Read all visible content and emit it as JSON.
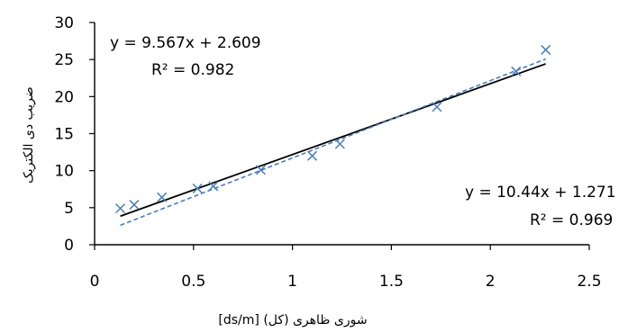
{
  "chart_data": {
    "type": "scatter",
    "xlabel": "شوری ظاهری (کل) [ds/m]",
    "ylabel": "ضریب دی الکتریک",
    "xlim": [
      0,
      2.5
    ],
    "ylim": [
      0,
      30
    ],
    "x_ticks": [
      "0",
      "0.5",
      "1",
      "1.5",
      "2",
      "2.5"
    ],
    "y_ticks": [
      "0",
      "5",
      "10",
      "15",
      "20",
      "25",
      "30"
    ],
    "grid": false,
    "series": [
      {
        "marker": "x",
        "color": "#4a7ebb",
        "points": [
          [
            0.13,
            4.9
          ],
          [
            0.2,
            5.4
          ],
          [
            0.34,
            6.4
          ],
          [
            0.52,
            7.6
          ],
          [
            0.6,
            7.9
          ],
          [
            0.84,
            10.1
          ],
          [
            1.1,
            12.0
          ],
          [
            1.24,
            13.6
          ],
          [
            1.73,
            18.6
          ],
          [
            2.13,
            23.4
          ],
          [
            2.28,
            26.3
          ]
        ]
      }
    ],
    "trendlines": [
      {
        "equation": "y = 9.567x + 2.609",
        "r2": "R² = 0.982",
        "slope": 9.567,
        "intercept": 2.609,
        "x_range": [
          0.13,
          2.28
        ],
        "color": "#000000",
        "style": "solid"
      },
      {
        "equation": "y = 10.44x + 1.271",
        "r2": "R² = 0.969",
        "slope": 10.44,
        "intercept": 1.271,
        "x_range": [
          0.13,
          2.28
        ],
        "color": "#4a7ebb",
        "style": "dashed"
      }
    ]
  }
}
